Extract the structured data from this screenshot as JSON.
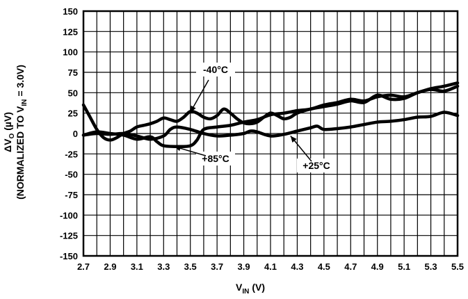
{
  "chart_data": {
    "type": "line",
    "xlabel": "V",
    "xlabel_sub": "IN",
    "xlabel_unit": "(V)",
    "ylabel_line1_prefix": "ΔV",
    "ylabel_line1_sub": "O",
    "ylabel_line1_unit": "(µV)",
    "ylabel_line2_prefix": "(NORMALIZED TO V",
    "ylabel_line2_sub": "IN",
    "ylabel_line2_suffix": "= 3.0V)",
    "xlim": [
      2.7,
      5.5
    ],
    "ylim": [
      -150,
      150
    ],
    "grid": true,
    "x_ticks": [
      "2.7",
      "2.9",
      "3.1",
      "3.3",
      "3.5",
      "3.7",
      "3.9",
      "4.1",
      "4.3",
      "4.5",
      "4.7",
      "4.9",
      "5.1",
      "5.3",
      "5.5"
    ],
    "y_ticks": [
      "150",
      "125",
      "100",
      "75",
      "50",
      "25",
      "0",
      "-25",
      "-50",
      "-75",
      "-100",
      "-125",
      "-150"
    ],
    "series": [
      {
        "name": "-40°C",
        "points": [
          [
            2.7,
            35
          ],
          [
            2.75,
            20
          ],
          [
            2.8,
            5
          ],
          [
            2.85,
            -5
          ],
          [
            2.9,
            -8
          ],
          [
            2.95,
            -5
          ],
          [
            3.0,
            0
          ],
          [
            3.05,
            3
          ],
          [
            3.1,
            8
          ],
          [
            3.15,
            10
          ],
          [
            3.2,
            12
          ],
          [
            3.25,
            15
          ],
          [
            3.3,
            19
          ],
          [
            3.35,
            17
          ],
          [
            3.4,
            15
          ],
          [
            3.45,
            20
          ],
          [
            3.5,
            27
          ],
          [
            3.55,
            25
          ],
          [
            3.6,
            20
          ],
          [
            3.65,
            18
          ],
          [
            3.7,
            22
          ],
          [
            3.75,
            30
          ],
          [
            3.8,
            25
          ],
          [
            3.85,
            18
          ],
          [
            3.9,
            13
          ],
          [
            3.95,
            12
          ],
          [
            4.0,
            14
          ],
          [
            4.05,
            20
          ],
          [
            4.1,
            25
          ],
          [
            4.15,
            22
          ],
          [
            4.2,
            18
          ],
          [
            4.25,
            20
          ],
          [
            4.3,
            25
          ],
          [
            4.4,
            30
          ],
          [
            4.5,
            33
          ],
          [
            4.6,
            36
          ],
          [
            4.7,
            40
          ],
          [
            4.8,
            38
          ],
          [
            4.9,
            47
          ],
          [
            5.0,
            42
          ],
          [
            5.1,
            43
          ],
          [
            5.2,
            50
          ],
          [
            5.3,
            54
          ],
          [
            5.4,
            52
          ],
          [
            5.5,
            58
          ]
        ]
      },
      {
        "name": "+25°C",
        "points": [
          [
            2.7,
            -2
          ],
          [
            2.8,
            0
          ],
          [
            2.9,
            -1
          ],
          [
            3.0,
            0
          ],
          [
            3.1,
            -3
          ],
          [
            3.2,
            -7
          ],
          [
            3.3,
            -3
          ],
          [
            3.35,
            5
          ],
          [
            3.4,
            8
          ],
          [
            3.5,
            5
          ],
          [
            3.6,
            0
          ],
          [
            3.7,
            -3
          ],
          [
            3.8,
            -2
          ],
          [
            3.9,
            0
          ],
          [
            3.95,
            3
          ],
          [
            4.0,
            2
          ],
          [
            4.1,
            -3
          ],
          [
            4.2,
            -1
          ],
          [
            4.3,
            3
          ],
          [
            4.4,
            7
          ],
          [
            4.45,
            9
          ],
          [
            4.5,
            5
          ],
          [
            4.6,
            6
          ],
          [
            4.7,
            8
          ],
          [
            4.8,
            11
          ],
          [
            4.9,
            14
          ],
          [
            5.0,
            15
          ],
          [
            5.1,
            17
          ],
          [
            5.2,
            20
          ],
          [
            5.3,
            21
          ],
          [
            5.4,
            26
          ],
          [
            5.5,
            22
          ]
        ]
      },
      {
        "name": "+85°C",
        "points": [
          [
            2.7,
            -2
          ],
          [
            2.8,
            2
          ],
          [
            2.9,
            0
          ],
          [
            3.0,
            -2
          ],
          [
            3.1,
            -7
          ],
          [
            3.2,
            -4
          ],
          [
            3.25,
            -10
          ],
          [
            3.3,
            -15
          ],
          [
            3.4,
            -16
          ],
          [
            3.5,
            -15
          ],
          [
            3.55,
            -8
          ],
          [
            3.6,
            5
          ],
          [
            3.7,
            8
          ],
          [
            3.8,
            10
          ],
          [
            3.9,
            14
          ],
          [
            4.0,
            17
          ],
          [
            4.1,
            23
          ],
          [
            4.2,
            25
          ],
          [
            4.3,
            28
          ],
          [
            4.4,
            30
          ],
          [
            4.5,
            35
          ],
          [
            4.6,
            38
          ],
          [
            4.7,
            42
          ],
          [
            4.8,
            40
          ],
          [
            4.9,
            45
          ],
          [
            5.0,
            47
          ],
          [
            5.1,
            45
          ],
          [
            5.2,
            50
          ],
          [
            5.3,
            55
          ],
          [
            5.4,
            58
          ],
          [
            5.5,
            62
          ]
        ]
      }
    ],
    "annotations": [
      {
        "text": "-40°C",
        "target": [
          3.5,
          26
        ]
      },
      {
        "text": "+85°C",
        "target": [
          3.38,
          -16
        ]
      },
      {
        "text": "+25°C",
        "target": [
          4.25,
          -3
        ]
      }
    ]
  }
}
